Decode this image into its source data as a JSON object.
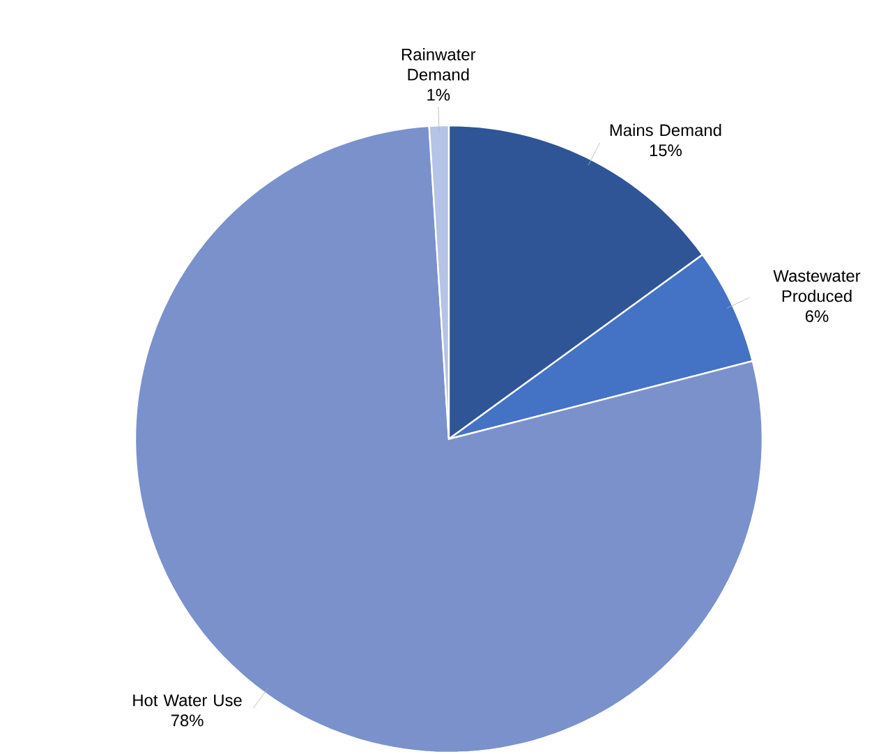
{
  "chart_data": {
    "type": "pie",
    "categories": [
      "Mains Demand",
      "Wastewater Produced",
      "Hot Water Use",
      "Rainwater Demand"
    ],
    "values": [
      15,
      6,
      78,
      1
    ],
    "colors": [
      "#2f5597",
      "#4472c4",
      "#7b91cc",
      "#b4c3e6"
    ],
    "value_labels": [
      "15%",
      "6%",
      "78%",
      "1%"
    ]
  }
}
